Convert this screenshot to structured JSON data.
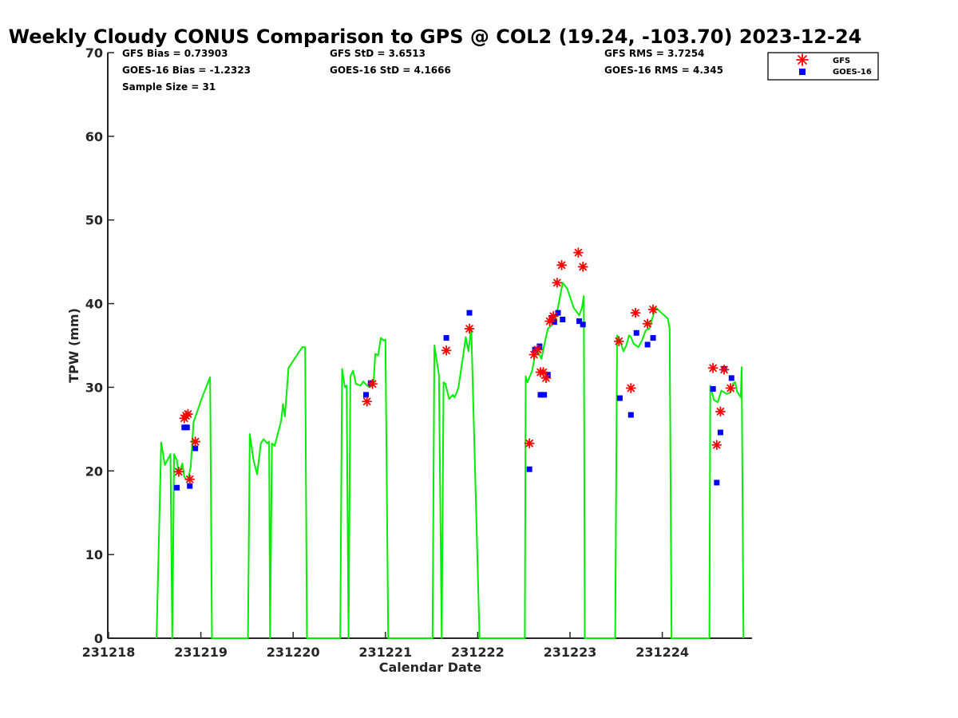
{
  "chart_data": {
    "type": "scatter",
    "title": "Weekly Cloudy CONUS Comparison to GPS @ COL2 (19.24, -103.70) 2023-12-24",
    "xlabel": "Calendar Date",
    "ylabel": "TPW (mm)",
    "xlim": [
      231218,
      231225
    ],
    "ylim": [
      0,
      70
    ],
    "xticks": [
      231218,
      231219,
      231220,
      231221,
      231222,
      231223,
      231224
    ],
    "yticks": [
      0,
      10,
      20,
      30,
      40,
      50,
      60,
      70
    ],
    "grid": false,
    "legend_position": "top-right",
    "stats": [
      "GFS Bias = 0.73903",
      "GOES-16 Bias = -1.2323",
      "Sample Size = 31",
      "GFS StD = 3.6513",
      "GOES-16 StD = 4.1666",
      "GFS RMS = 3.7254",
      "GOES-16 RMS = 4.345"
    ],
    "series": [
      {
        "name": "GFS",
        "marker": "asterisk",
        "color": "#ff0000",
        "points": [
          [
            231218.76,
            19.9
          ],
          [
            231218.82,
            26.3
          ],
          [
            231218.84,
            26.6
          ],
          [
            231218.86,
            26.8
          ],
          [
            231218.88,
            19.0
          ],
          [
            231218.94,
            23.5
          ],
          [
            231220.8,
            28.3
          ],
          [
            231220.86,
            30.4
          ],
          [
            231221.66,
            34.4
          ],
          [
            231221.91,
            37.0
          ],
          [
            231222.56,
            23.3
          ],
          [
            231222.61,
            33.9
          ],
          [
            231222.65,
            34.5
          ],
          [
            231222.68,
            31.8
          ],
          [
            231222.71,
            31.8
          ],
          [
            231222.74,
            31.1
          ],
          [
            231222.78,
            37.9
          ],
          [
            231222.82,
            38.5
          ],
          [
            231222.86,
            42.5
          ],
          [
            231222.91,
            44.6
          ],
          [
            231223.09,
            46.1
          ],
          [
            231223.14,
            44.4
          ],
          [
            231223.53,
            35.5
          ],
          [
            231223.66,
            29.9
          ],
          [
            231223.71,
            38.9
          ],
          [
            231223.84,
            37.6
          ],
          [
            231223.9,
            39.3
          ],
          [
            231224.55,
            32.3
          ],
          [
            231224.59,
            23.1
          ],
          [
            231224.63,
            27.1
          ],
          [
            231224.67,
            32.1
          ],
          [
            231224.74,
            29.9
          ]
        ]
      },
      {
        "name": "GOES-16",
        "marker": "square",
        "color": "#0000ff",
        "points": [
          [
            231218.74,
            18.0
          ],
          [
            231218.82,
            25.2
          ],
          [
            231218.85,
            25.2
          ],
          [
            231218.88,
            18.2
          ],
          [
            231218.94,
            22.7
          ],
          [
            231220.79,
            29.1
          ],
          [
            231220.84,
            30.5
          ],
          [
            231221.66,
            35.9
          ],
          [
            231221.91,
            38.9
          ],
          [
            231222.56,
            20.2
          ],
          [
            231222.62,
            34.5
          ],
          [
            231222.67,
            34.9
          ],
          [
            231222.68,
            29.1
          ],
          [
            231222.72,
            29.1
          ],
          [
            231222.76,
            31.5
          ],
          [
            231222.8,
            38.3
          ],
          [
            231222.83,
            37.8
          ],
          [
            231222.87,
            38.9
          ],
          [
            231222.92,
            38.1
          ],
          [
            231223.1,
            37.9
          ],
          [
            231223.14,
            37.5
          ],
          [
            231223.54,
            28.7
          ],
          [
            231223.66,
            26.7
          ],
          [
            231223.72,
            36.5
          ],
          [
            231223.84,
            35.1
          ],
          [
            231223.9,
            35.9
          ],
          [
            231224.55,
            29.8
          ],
          [
            231224.59,
            18.6
          ],
          [
            231224.63,
            24.6
          ],
          [
            231224.67,
            32.2
          ],
          [
            231224.75,
            31.1
          ]
        ]
      },
      {
        "name": "GPS",
        "marker": "line",
        "color": "#00ee00",
        "points": [
          [
            231218.52,
            0
          ],
          [
            231218.57,
            23.4
          ],
          [
            231218.61,
            20.7
          ],
          [
            231218.67,
            22.0
          ],
          [
            231218.69,
            0
          ],
          [
            231218.71,
            22.0
          ],
          [
            231218.74,
            21.3
          ],
          [
            231218.76,
            19.6
          ],
          [
            231218.8,
            20.9
          ],
          [
            231218.82,
            19.3
          ],
          [
            231218.86,
            18.8
          ],
          [
            231218.89,
            20.5
          ],
          [
            231218.92,
            25.8
          ],
          [
            231219.01,
            28.7
          ],
          [
            231219.1,
            31.2
          ],
          [
            231219.12,
            0
          ],
          [
            231219.51,
            0
          ],
          [
            231219.53,
            24.4
          ],
          [
            231219.57,
            21.3
          ],
          [
            231219.61,
            19.6
          ],
          [
            231219.65,
            23.3
          ],
          [
            231219.68,
            23.8
          ],
          [
            231219.72,
            23.3
          ],
          [
            231219.74,
            23.5
          ],
          [
            231219.75,
            0
          ],
          [
            231219.77,
            23.3
          ],
          [
            231219.8,
            23.0
          ],
          [
            231219.87,
            26.0
          ],
          [
            231219.89,
            28.0
          ],
          [
            231219.91,
            26.5
          ],
          [
            231219.95,
            32.3
          ],
          [
            231220.05,
            34.0
          ],
          [
            231220.1,
            34.8
          ],
          [
            231220.13,
            34.8
          ],
          [
            231220.15,
            0
          ],
          [
            231220.51,
            0
          ],
          [
            231220.53,
            32.2
          ],
          [
            231220.56,
            30.0
          ],
          [
            231220.58,
            30.2
          ],
          [
            231220.6,
            0
          ],
          [
            231220.62,
            31.3
          ],
          [
            231220.65,
            32.0
          ],
          [
            231220.68,
            30.4
          ],
          [
            231220.73,
            30.2
          ],
          [
            231220.76,
            30.7
          ],
          [
            231220.8,
            30.2
          ],
          [
            231220.83,
            30.0
          ],
          [
            231220.87,
            30.3
          ],
          [
            231220.89,
            34.0
          ],
          [
            231220.92,
            33.8
          ],
          [
            231220.95,
            35.9
          ],
          [
            231220.98,
            35.6
          ],
          [
            231221.0,
            35.7
          ],
          [
            231221.03,
            0
          ],
          [
            231221.51,
            0
          ],
          [
            231221.53,
            35.0
          ],
          [
            231221.58,
            31.5
          ],
          [
            231221.61,
            0
          ],
          [
            231221.63,
            30.6
          ],
          [
            231221.65,
            30.4
          ],
          [
            231221.69,
            28.6
          ],
          [
            231221.73,
            29.1
          ],
          [
            231221.75,
            28.8
          ],
          [
            231221.79,
            29.9
          ],
          [
            231221.84,
            33.6
          ],
          [
            231221.87,
            36.0
          ],
          [
            231221.9,
            34.3
          ],
          [
            231221.93,
            37.1
          ],
          [
            231222.02,
            0
          ],
          [
            231222.51,
            0
          ],
          [
            231222.52,
            31.3
          ],
          [
            231222.54,
            30.6
          ],
          [
            231222.59,
            32.0
          ],
          [
            231222.62,
            33.8
          ],
          [
            231222.65,
            34.3
          ],
          [
            231222.69,
            33.4
          ],
          [
            231222.72,
            35.0
          ],
          [
            231222.76,
            37.0
          ],
          [
            231222.81,
            37.5
          ],
          [
            231222.86,
            39.0
          ],
          [
            231222.92,
            42.5
          ],
          [
            231222.97,
            41.8
          ],
          [
            231223.04,
            39.5
          ],
          [
            231223.1,
            38.6
          ],
          [
            231223.13,
            39.5
          ],
          [
            231223.15,
            40.9
          ],
          [
            231223.16,
            0
          ],
          [
            231223.49,
            0
          ],
          [
            231223.51,
            36.2
          ],
          [
            231223.54,
            35.6
          ],
          [
            231223.58,
            34.3
          ],
          [
            231223.61,
            35.0
          ],
          [
            231223.64,
            36.2
          ],
          [
            231223.66,
            36.0
          ],
          [
            231223.69,
            35.2
          ],
          [
            231223.74,
            34.8
          ],
          [
            231223.78,
            35.6
          ],
          [
            231223.82,
            36.8
          ],
          [
            231223.86,
            37.0
          ],
          [
            231223.89,
            38.2
          ],
          [
            231223.93,
            39.5
          ],
          [
            231224.06,
            38.2
          ],
          [
            231224.08,
            37.0
          ],
          [
            231224.1,
            0
          ],
          [
            231224.51,
            0
          ],
          [
            231224.52,
            30.2
          ],
          [
            231224.56,
            28.5
          ],
          [
            231224.6,
            28.2
          ],
          [
            231224.64,
            29.6
          ],
          [
            231224.7,
            29.2
          ],
          [
            231224.74,
            29.4
          ],
          [
            231224.77,
            30.5
          ],
          [
            231224.79,
            30.6
          ],
          [
            231224.81,
            29.5
          ],
          [
            231224.85,
            28.8
          ],
          [
            231224.86,
            32.4
          ],
          [
            231224.88,
            0
          ]
        ]
      }
    ]
  }
}
